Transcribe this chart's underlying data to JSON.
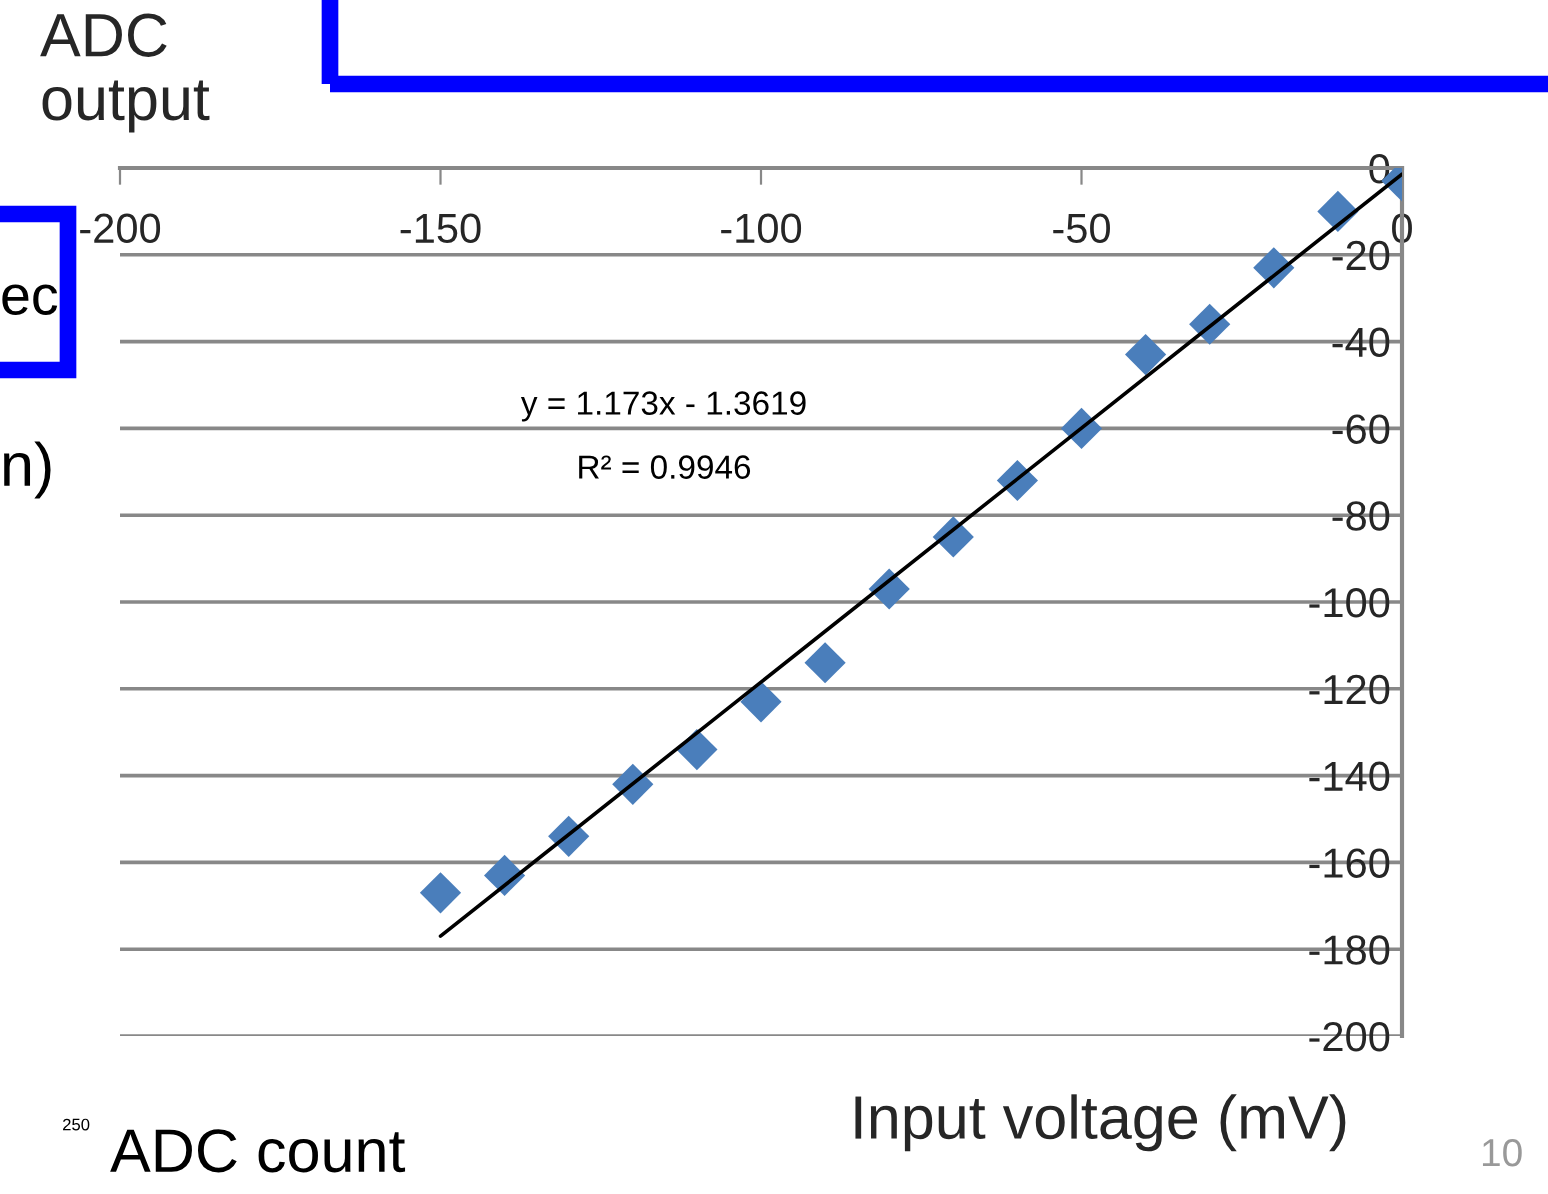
{
  "chart_data": {
    "type": "scatter",
    "xlabel": "Input voltage (mV)",
    "ylabel": "ADC output",
    "x": [
      -150,
      -140,
      -130,
      -120,
      -110,
      -100,
      -90,
      -80,
      -70,
      -60,
      -50,
      -40,
      -30,
      -20,
      -10,
      0
    ],
    "series": [
      {
        "type": "scatter",
        "color": "#4a7ebb",
        "marker": "diamond",
        "values": [
          -167,
          -163,
          -154,
          -142,
          -134,
          -123,
          -114,
          -97,
          -85,
          -72,
          -60,
          -43,
          -36,
          -23,
          -10,
          -3
        ]
      },
      {
        "type": "line",
        "color": "#000000",
        "marker": "none",
        "line_style": "solid",
        "x": [
          -150,
          0
        ],
        "values": [
          -177,
          -1.4
        ]
      }
    ],
    "xlim": [
      -200,
      0
    ],
    "xticks": [
      -200,
      -150,
      -100,
      -50,
      0
    ],
    "ylim": [
      -200,
      0
    ],
    "yticks": [
      -200,
      -180,
      -160,
      -140,
      -120,
      -100,
      -80,
      -60,
      -40,
      -20,
      0
    ],
    "grid": "y",
    "legend": false,
    "annotations": [
      "y = 1.173x - 1.3619",
      "R² = 0.9946",
      "ADC count",
      "250",
      "ec",
      "n)",
      "10"
    ]
  }
}
